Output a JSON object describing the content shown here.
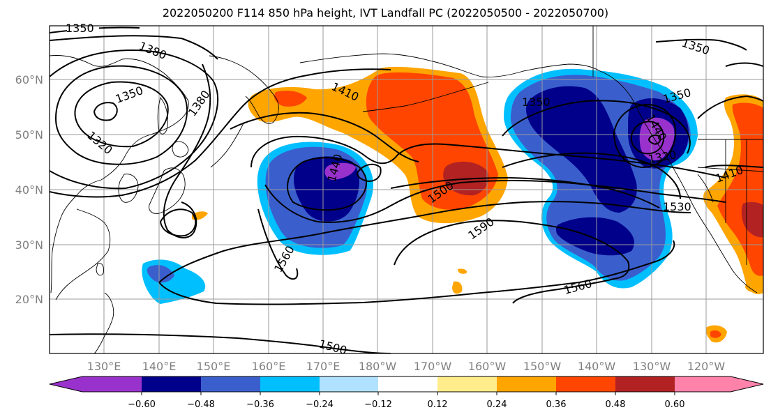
{
  "title": "2022050200 F114 850 hPa height, IVT Landfall PC (2022050500 - 2022050700)",
  "lat_labels": [
    "60°N",
    "50°N",
    "40°N",
    "30°N",
    "20°N"
  ],
  "lon_labels": [
    "130°E",
    "140°E",
    "150°E",
    "160°E",
    "170°E",
    "180°W",
    "170°W",
    "160°W",
    "150°W",
    "140°W",
    "130°W",
    "120°W"
  ],
  "contour_labels": [
    "1350",
    "1380",
    "1350",
    "1380",
    "1320",
    "1410",
    "1440",
    "1500",
    "1560",
    "1590",
    "1560",
    "1500",
    "1350",
    "1350",
    "1440",
    "1320",
    "1530",
    "1410"
  ],
  "colorbar": {
    "ticks": [
      "−0.60",
      "−0.48",
      "−0.36",
      "−0.24",
      "−0.12",
      "0.12",
      "0.24",
      "0.36",
      "0.48",
      "0.60"
    ],
    "colors": [
      "#9932cc",
      "#00008b",
      "#3a5fcd",
      "#00bfff",
      "#b0e2ff",
      "#ffffff",
      "#ffec8b",
      "#ffa500",
      "#ff4500",
      "#b22222",
      "#ff82ab"
    ]
  }
}
